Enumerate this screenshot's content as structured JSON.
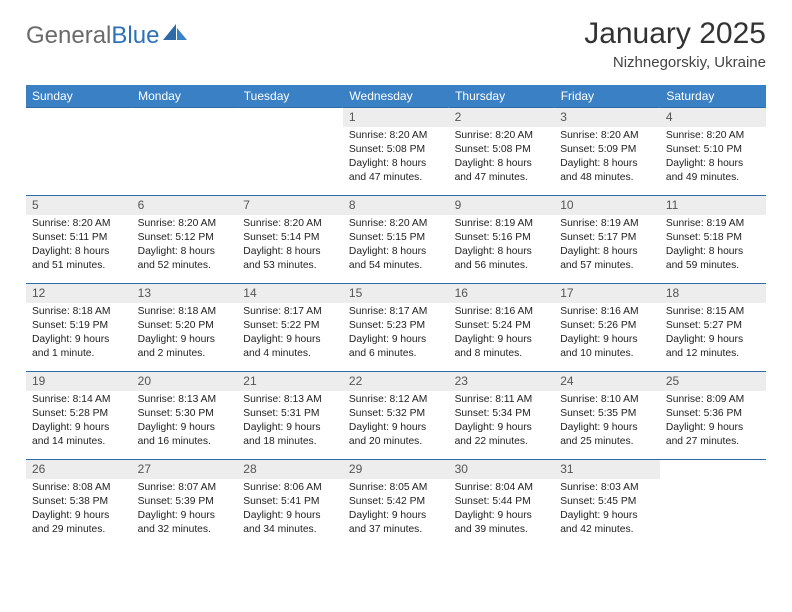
{
  "logo": {
    "part1": "General",
    "part2": "Blue"
  },
  "title": "January 2025",
  "subtitle": "Nizhnegorskiy, Ukraine",
  "colors": {
    "header_bg": "#3a80c5",
    "header_text": "#ffffff",
    "row_border": "#2f6aa8",
    "daynum_bg": "#ededed",
    "daynum_text": "#555555",
    "body_text": "#222222",
    "logo_gray": "#6a6a6a",
    "logo_blue": "#2f71b8"
  },
  "day_labels": [
    "Sunday",
    "Monday",
    "Tuesday",
    "Wednesday",
    "Thursday",
    "Friday",
    "Saturday"
  ],
  "weeks": [
    [
      {
        "n": "",
        "sr": "",
        "ss": "",
        "dl": ""
      },
      {
        "n": "",
        "sr": "",
        "ss": "",
        "dl": ""
      },
      {
        "n": "",
        "sr": "",
        "ss": "",
        "dl": ""
      },
      {
        "n": "1",
        "sr": "8:20 AM",
        "ss": "5:08 PM",
        "dl": "8 hours and 47 minutes."
      },
      {
        "n": "2",
        "sr": "8:20 AM",
        "ss": "5:08 PM",
        "dl": "8 hours and 47 minutes."
      },
      {
        "n": "3",
        "sr": "8:20 AM",
        "ss": "5:09 PM",
        "dl": "8 hours and 48 minutes."
      },
      {
        "n": "4",
        "sr": "8:20 AM",
        "ss": "5:10 PM",
        "dl": "8 hours and 49 minutes."
      }
    ],
    [
      {
        "n": "5",
        "sr": "8:20 AM",
        "ss": "5:11 PM",
        "dl": "8 hours and 51 minutes."
      },
      {
        "n": "6",
        "sr": "8:20 AM",
        "ss": "5:12 PM",
        "dl": "8 hours and 52 minutes."
      },
      {
        "n": "7",
        "sr": "8:20 AM",
        "ss": "5:14 PM",
        "dl": "8 hours and 53 minutes."
      },
      {
        "n": "8",
        "sr": "8:20 AM",
        "ss": "5:15 PM",
        "dl": "8 hours and 54 minutes."
      },
      {
        "n": "9",
        "sr": "8:19 AM",
        "ss": "5:16 PM",
        "dl": "8 hours and 56 minutes."
      },
      {
        "n": "10",
        "sr": "8:19 AM",
        "ss": "5:17 PM",
        "dl": "8 hours and 57 minutes."
      },
      {
        "n": "11",
        "sr": "8:19 AM",
        "ss": "5:18 PM",
        "dl": "8 hours and 59 minutes."
      }
    ],
    [
      {
        "n": "12",
        "sr": "8:18 AM",
        "ss": "5:19 PM",
        "dl": "9 hours and 1 minute."
      },
      {
        "n": "13",
        "sr": "8:18 AM",
        "ss": "5:20 PM",
        "dl": "9 hours and 2 minutes."
      },
      {
        "n": "14",
        "sr": "8:17 AM",
        "ss": "5:22 PM",
        "dl": "9 hours and 4 minutes."
      },
      {
        "n": "15",
        "sr": "8:17 AM",
        "ss": "5:23 PM",
        "dl": "9 hours and 6 minutes."
      },
      {
        "n": "16",
        "sr": "8:16 AM",
        "ss": "5:24 PM",
        "dl": "9 hours and 8 minutes."
      },
      {
        "n": "17",
        "sr": "8:16 AM",
        "ss": "5:26 PM",
        "dl": "9 hours and 10 minutes."
      },
      {
        "n": "18",
        "sr": "8:15 AM",
        "ss": "5:27 PM",
        "dl": "9 hours and 12 minutes."
      }
    ],
    [
      {
        "n": "19",
        "sr": "8:14 AM",
        "ss": "5:28 PM",
        "dl": "9 hours and 14 minutes."
      },
      {
        "n": "20",
        "sr": "8:13 AM",
        "ss": "5:30 PM",
        "dl": "9 hours and 16 minutes."
      },
      {
        "n": "21",
        "sr": "8:13 AM",
        "ss": "5:31 PM",
        "dl": "9 hours and 18 minutes."
      },
      {
        "n": "22",
        "sr": "8:12 AM",
        "ss": "5:32 PM",
        "dl": "9 hours and 20 minutes."
      },
      {
        "n": "23",
        "sr": "8:11 AM",
        "ss": "5:34 PM",
        "dl": "9 hours and 22 minutes."
      },
      {
        "n": "24",
        "sr": "8:10 AM",
        "ss": "5:35 PM",
        "dl": "9 hours and 25 minutes."
      },
      {
        "n": "25",
        "sr": "8:09 AM",
        "ss": "5:36 PM",
        "dl": "9 hours and 27 minutes."
      }
    ],
    [
      {
        "n": "26",
        "sr": "8:08 AM",
        "ss": "5:38 PM",
        "dl": "9 hours and 29 minutes."
      },
      {
        "n": "27",
        "sr": "8:07 AM",
        "ss": "5:39 PM",
        "dl": "9 hours and 32 minutes."
      },
      {
        "n": "28",
        "sr": "8:06 AM",
        "ss": "5:41 PM",
        "dl": "9 hours and 34 minutes."
      },
      {
        "n": "29",
        "sr": "8:05 AM",
        "ss": "5:42 PM",
        "dl": "9 hours and 37 minutes."
      },
      {
        "n": "30",
        "sr": "8:04 AM",
        "ss": "5:44 PM",
        "dl": "9 hours and 39 minutes."
      },
      {
        "n": "31",
        "sr": "8:03 AM",
        "ss": "5:45 PM",
        "dl": "9 hours and 42 minutes."
      },
      {
        "n": "",
        "sr": "",
        "ss": "",
        "dl": ""
      }
    ]
  ],
  "labels": {
    "sunrise": "Sunrise:",
    "sunset": "Sunset:",
    "daylight": "Daylight:"
  }
}
